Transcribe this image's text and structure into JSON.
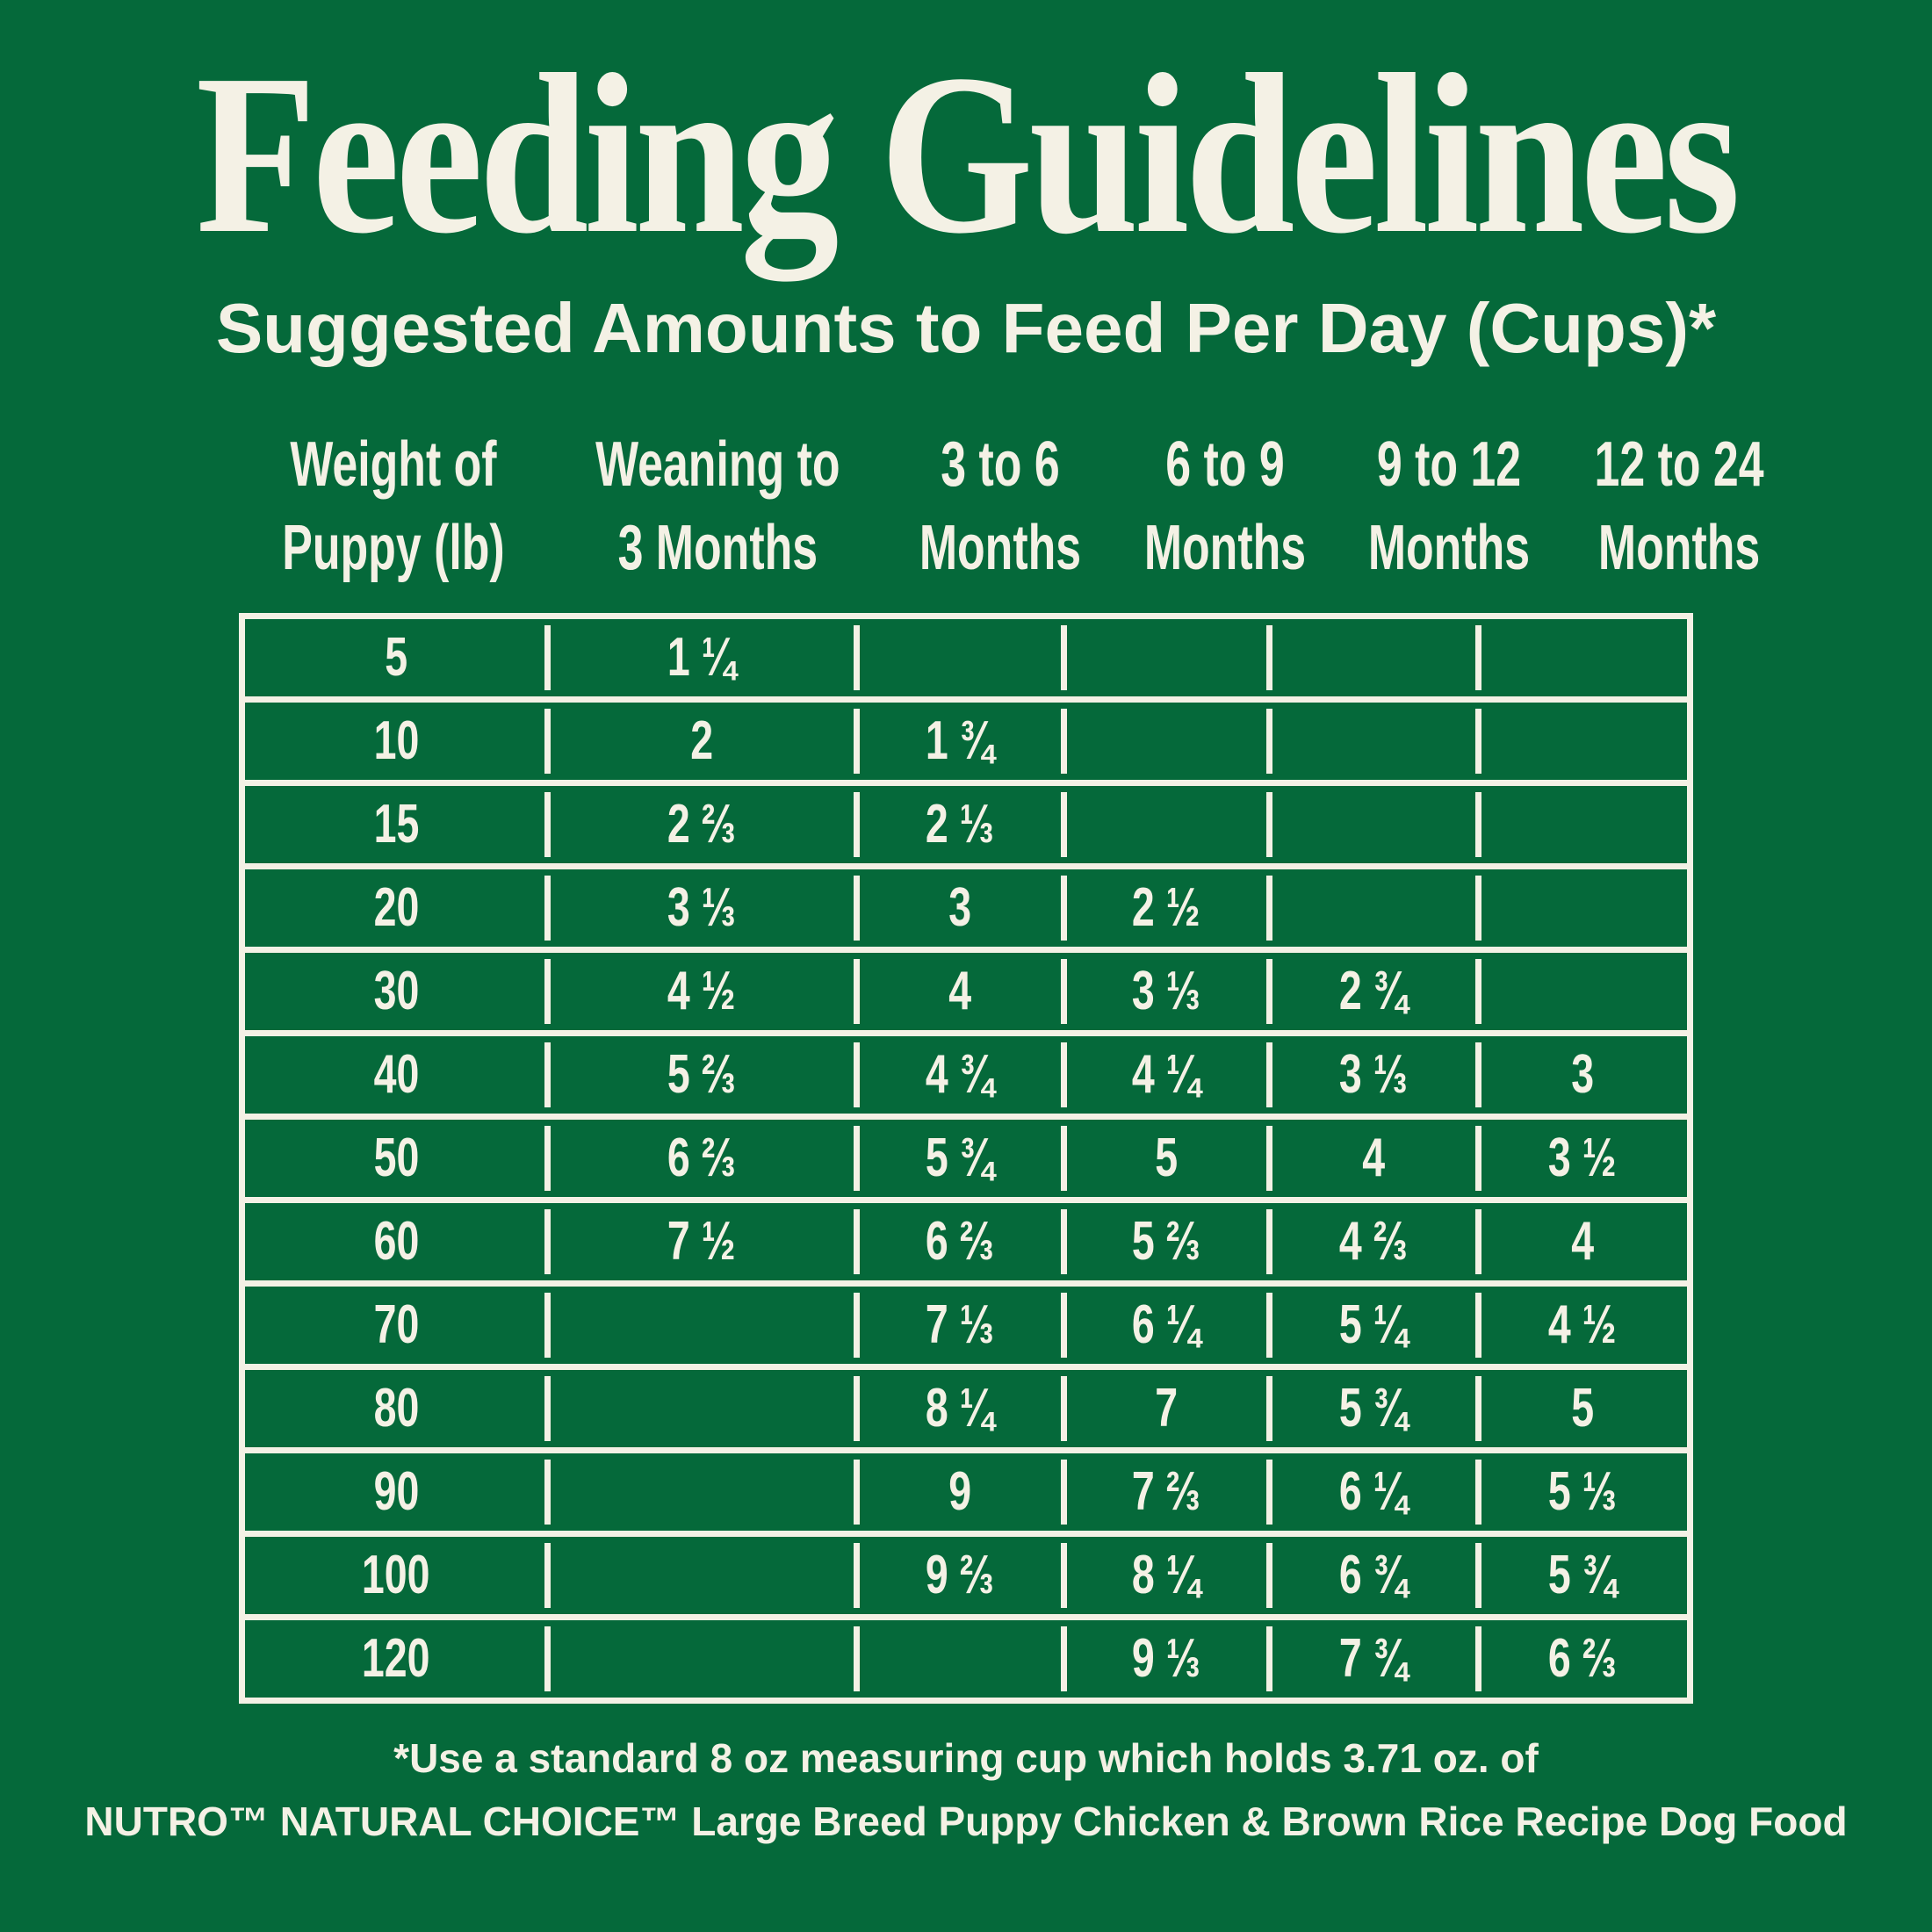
{
  "colors": {
    "background_green": "#05693A",
    "text_cream": "#F4F1E5"
  },
  "title": "Feeding Guidelines",
  "subtitle": "Suggested Amounts to Feed Per Day (Cups)*",
  "table": {
    "columns": [
      {
        "line1": "Weight of",
        "line2": "Puppy (lb)"
      },
      {
        "line1": "Weaning to",
        "line2": "3 Months"
      },
      {
        "line1": "3 to 6",
        "line2": "Months"
      },
      {
        "line1": "6 to 9",
        "line2": "Months"
      },
      {
        "line1": "9 to 12",
        "line2": "Months"
      },
      {
        "line1": "12 to 24",
        "line2": "Months"
      }
    ],
    "rows": [
      {
        "weight": "5",
        "values": [
          "1 ¼",
          "",
          "",
          "",
          ""
        ]
      },
      {
        "weight": "10",
        "values": [
          "2",
          "1 ¾",
          "",
          "",
          ""
        ]
      },
      {
        "weight": "15",
        "values": [
          "2 ⅔",
          "2 ⅓",
          "",
          "",
          ""
        ]
      },
      {
        "weight": "20",
        "values": [
          "3 ⅓",
          "3",
          "2 ½",
          "",
          ""
        ]
      },
      {
        "weight": "30",
        "values": [
          "4 ½",
          "4",
          "3 ⅓",
          "2 ¾",
          ""
        ]
      },
      {
        "weight": "40",
        "values": [
          "5 ⅔",
          "4 ¾",
          "4 ¼",
          "3 ⅓",
          "3"
        ]
      },
      {
        "weight": "50",
        "values": [
          "6 ⅔",
          "5 ¾",
          "5",
          "4",
          "3 ½"
        ]
      },
      {
        "weight": "60",
        "values": [
          "7 ½",
          "6 ⅔",
          "5 ⅔",
          "4 ⅔",
          "4"
        ]
      },
      {
        "weight": "70",
        "values": [
          "",
          "7 ⅓",
          "6 ¼",
          "5 ¼",
          "4 ½"
        ]
      },
      {
        "weight": "80",
        "values": [
          "",
          "8 ¼",
          "7",
          "5 ¾",
          "5"
        ]
      },
      {
        "weight": "90",
        "values": [
          "",
          "9",
          "7 ⅔",
          "6 ¼",
          "5 ⅓"
        ]
      },
      {
        "weight": "100",
        "values": [
          "",
          "9 ⅔",
          "8 ¼",
          "6 ¾",
          "5 ¾"
        ]
      },
      {
        "weight": "120",
        "values": [
          "",
          "",
          "9 ⅓",
          "7 ¾",
          "6 ⅔"
        ]
      }
    ]
  },
  "footnote_line1": "*Use a standard 8 oz measuring cup which holds 3.71 oz. of",
  "footnote_line2": "NUTRO™ NATURAL CHOICE™ Large Breed Puppy Chicken & Brown Rice Recipe Dog Food",
  "chart_data": {
    "type": "table",
    "title": "Feeding Guidelines",
    "subtitle": "Suggested Amounts to Feed Per Day (Cups)*",
    "columns": [
      "Weight of Puppy (lb)",
      "Weaning to 3 Months",
      "3 to 6 Months",
      "6 to 9 Months",
      "9 to 12 Months",
      "12 to 24 Months"
    ],
    "rows": [
      [
        "5",
        "1 ¼",
        "",
        "",
        "",
        ""
      ],
      [
        "10",
        "2",
        "1 ¾",
        "",
        "",
        ""
      ],
      [
        "15",
        "2 ⅔",
        "2 ⅓",
        "",
        "",
        ""
      ],
      [
        "20",
        "3 ⅓",
        "3",
        "2 ½",
        "",
        ""
      ],
      [
        "30",
        "4 ½",
        "4",
        "3 ⅓",
        "2 ¾",
        ""
      ],
      [
        "40",
        "5 ⅔",
        "4 ¾",
        "4 ¼",
        "3 ⅓",
        "3"
      ],
      [
        "50",
        "6 ⅔",
        "5 ¾",
        "5",
        "4",
        "3 ½"
      ],
      [
        "60",
        "7 ½",
        "6 ⅔",
        "5 ⅔",
        "4 ⅔",
        "4"
      ],
      [
        "70",
        "",
        "7 ⅓",
        "6 ¼",
        "5 ¼",
        "4 ½"
      ],
      [
        "80",
        "",
        "8 ¼",
        "7",
        "5 ¾",
        "5"
      ],
      [
        "90",
        "",
        "9",
        "7 ⅔",
        "6 ¼",
        "5 ⅓"
      ],
      [
        "100",
        "",
        "9 ⅔",
        "8 ¼",
        "6 ¾",
        "5 ¾"
      ],
      [
        "120",
        "",
        "",
        "9 ⅓",
        "7 ¾",
        "6 ⅔"
      ]
    ],
    "footnotes": [
      "*Use a standard 8 oz measuring cup which holds 3.71 oz. of",
      "NUTRO™ NATURAL CHOICE™ Large Breed Puppy Chicken & Brown Rice Recipe Dog Food"
    ]
  }
}
